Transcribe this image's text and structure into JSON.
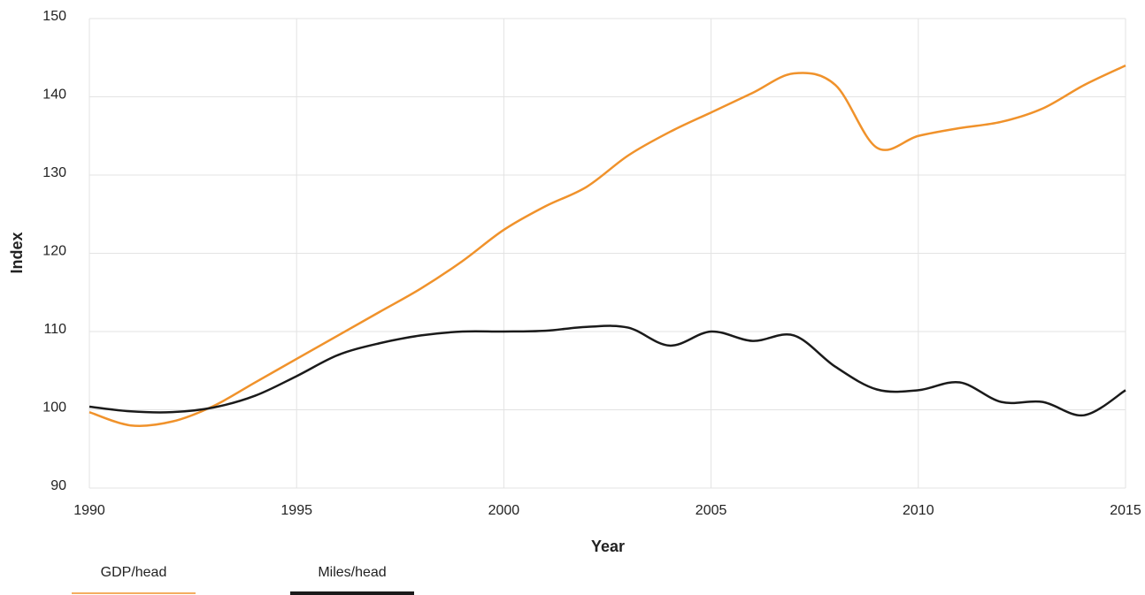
{
  "chart_data": {
    "type": "line",
    "x_label": "Year",
    "y_label": "Index",
    "x": [
      1990,
      1991,
      1992,
      1993,
      1994,
      1995,
      1996,
      1997,
      1998,
      1999,
      2000,
      2001,
      2002,
      2003,
      2004,
      2005,
      2006,
      2007,
      2008,
      2009,
      2010,
      2011,
      2012,
      2013,
      2014,
      2015
    ],
    "series": [
      {
        "name": "GDP/head",
        "color": "#f0922b",
        "values": [
          99.7,
          98.0,
          98.5,
          100.5,
          103.5,
          106.5,
          109.5,
          112.5,
          115.5,
          119,
          123,
          126,
          128.5,
          132.5,
          135.5,
          138,
          140.5,
          143,
          141.5,
          133.5,
          135,
          136,
          136.8,
          138.5,
          141.5,
          144
        ]
      },
      {
        "name": "Miles/head",
        "color": "#1a1a1a",
        "values": [
          100.4,
          99.8,
          99.7,
          100.3,
          101.8,
          104.3,
          107,
          108.5,
          109.5,
          110,
          110,
          110.1,
          110.6,
          110.5,
          108.2,
          110,
          108.8,
          109.5,
          105.5,
          102.6,
          102.5,
          103.5,
          101,
          101,
          99.3,
          102.5
        ]
      }
    ],
    "xlim": [
      1990,
      2015
    ],
    "xticks": [
      1990,
      1995,
      2000,
      2005,
      2010,
      2015
    ],
    "ylim": [
      90,
      150
    ],
    "yticks": [
      90,
      100,
      110,
      120,
      130,
      140,
      150
    ],
    "grid": true
  }
}
